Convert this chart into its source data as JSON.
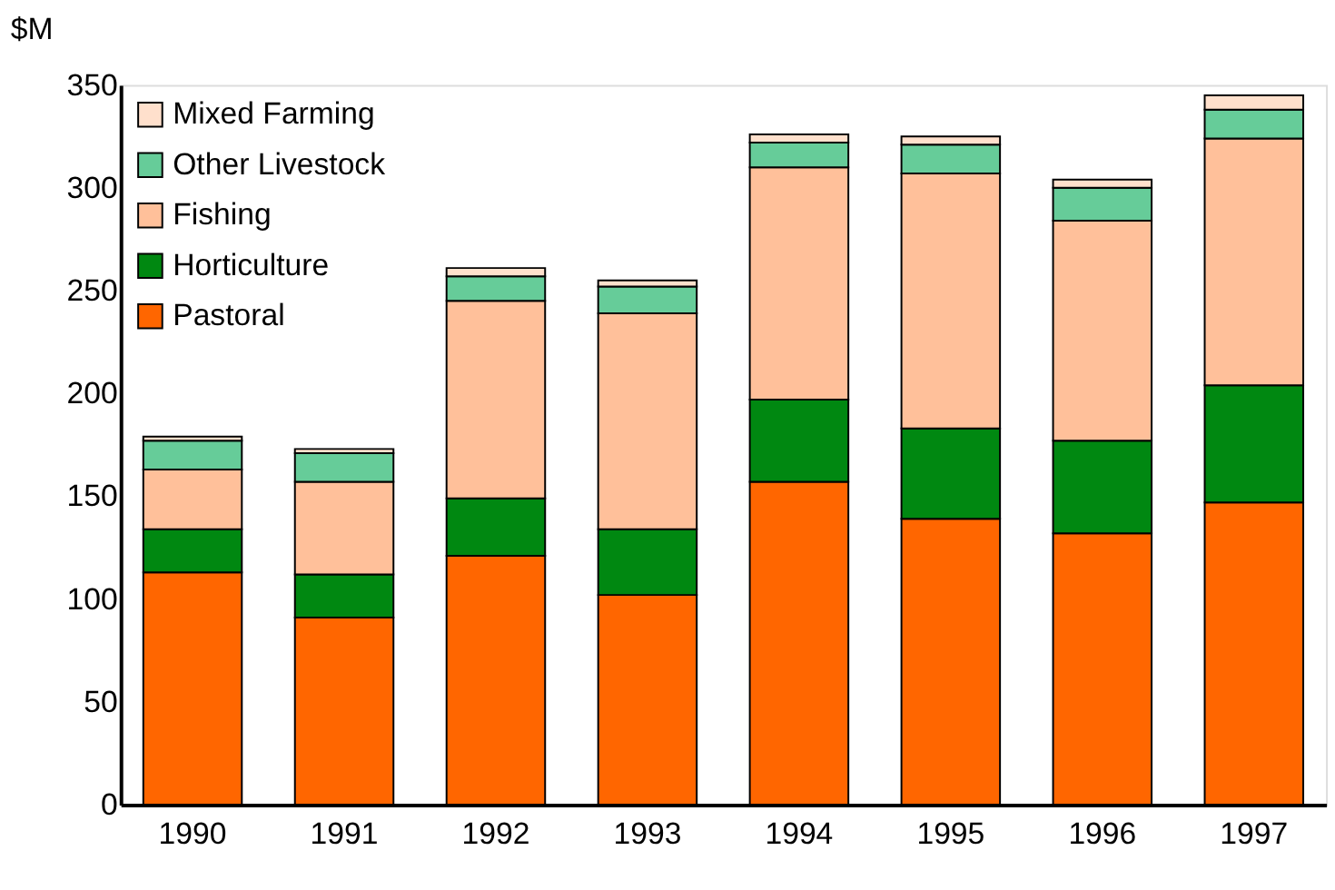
{
  "chart_data": {
    "type": "bar",
    "stacked": true,
    "ylabel": "$M",
    "categories": [
      "1990",
      "1991",
      "1992",
      "1993",
      "1994",
      "1995",
      "1996",
      "1997"
    ],
    "series": [
      {
        "name": "Pastoral",
        "color": "#ff6600",
        "values": [
          113,
          91,
          121,
          102,
          157,
          139,
          132,
          147
        ]
      },
      {
        "name": "Horticulture",
        "color": "#008811",
        "values": [
          21,
          21,
          28,
          32,
          40,
          44,
          45,
          57
        ]
      },
      {
        "name": "Fishing",
        "color": "#ffc09a",
        "values": [
          29,
          45,
          96,
          105,
          113,
          124,
          107,
          120
        ]
      },
      {
        "name": "Other Livestock",
        "color": "#66cc99",
        "values": [
          14,
          14,
          12,
          13,
          12,
          14,
          16,
          14
        ]
      },
      {
        "name": "Mixed Farming",
        "color": "#ffe0cc",
        "values": [
          2,
          2,
          4,
          3,
          4,
          4,
          4,
          7
        ]
      }
    ],
    "ylim": [
      0,
      350
    ],
    "yticks": [
      0,
      50,
      100,
      150,
      200,
      250,
      300,
      350
    ],
    "grid": false,
    "legend": "top left"
  }
}
